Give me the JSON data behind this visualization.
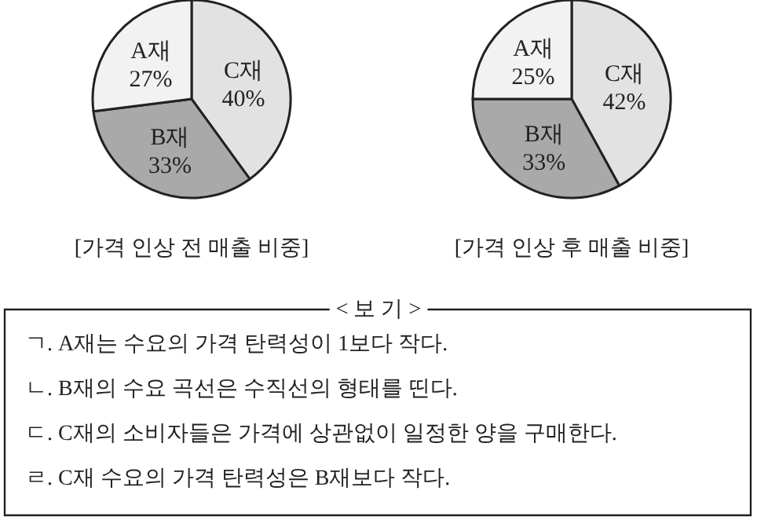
{
  "chart_data": [
    {
      "type": "pie",
      "title": "[가격 인상 전 매출 비중]",
      "categories": [
        "C재",
        "B재",
        "A재"
      ],
      "values": [
        40,
        33,
        27
      ],
      "value_labels": [
        "40%",
        "33%",
        "27%"
      ],
      "colors": [
        "#e2e2e2",
        "#a9a9a9",
        "#f2f2f2"
      ]
    },
    {
      "type": "pie",
      "title": "[가격 인상 후 매출 비중]",
      "categories": [
        "C재",
        "B재",
        "A재"
      ],
      "values": [
        42,
        33,
        25
      ],
      "value_labels": [
        "42%",
        "33%",
        "25%"
      ],
      "colors": [
        "#e2e2e2",
        "#a9a9a9",
        "#f2f2f2"
      ]
    },
    {
      "type": "other",
      "title": "< 보 기 >",
      "annotations": [
        "ㄱ. A재는 수요의 가격 탄력성이 1보다 작다.",
        "ㄴ. B재의 수요 곡선은 수직선의 형태를 띤다.",
        "ㄷ. C재의 소비자들은 가격에 상관없이 일정한 양을 구매한다.",
        "ㄹ. C재 수요의 가격 탄력성은 B재보다 작다."
      ]
    }
  ]
}
